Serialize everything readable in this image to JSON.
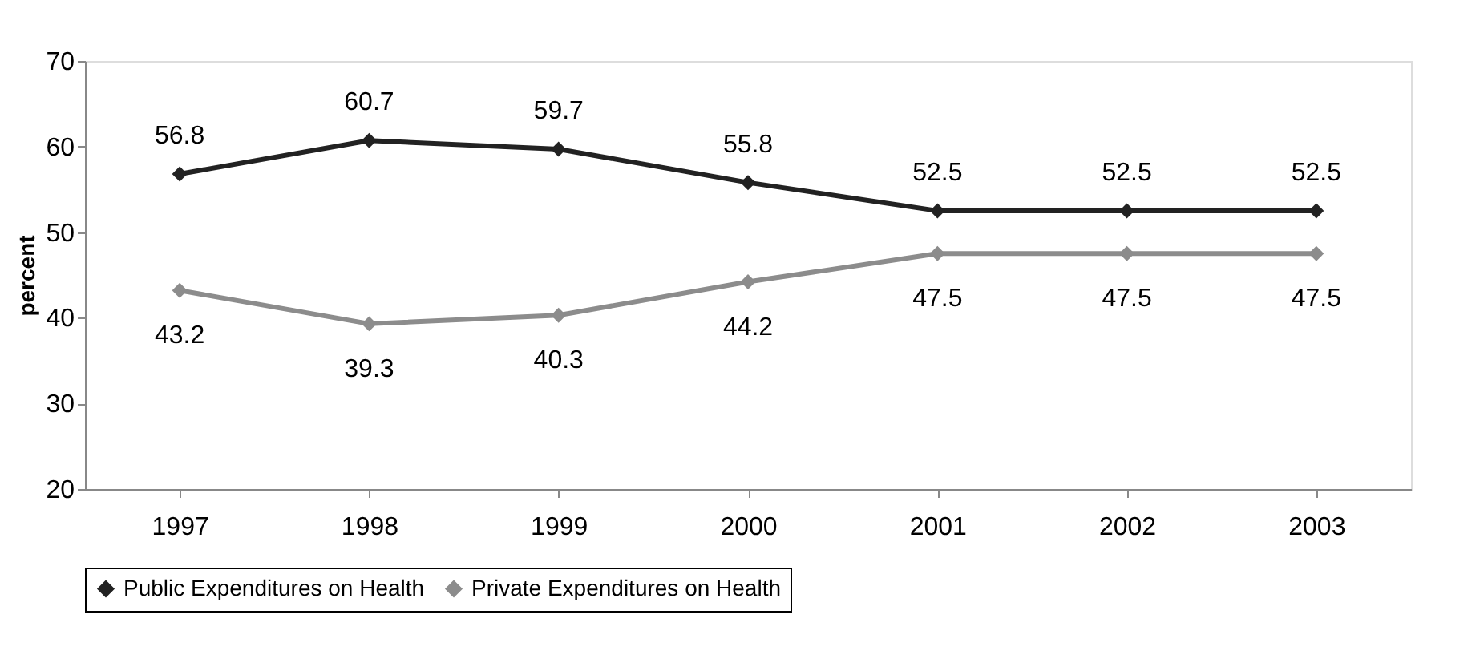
{
  "chart_data": {
    "type": "line",
    "ylabel": "percent",
    "categories": [
      "1997",
      "1998",
      "1999",
      "2000",
      "2001",
      "2002",
      "2003"
    ],
    "series": [
      {
        "name": "Public Expenditures on Health",
        "color": "#222222",
        "values": [
          56.8,
          60.7,
          59.7,
          55.8,
          52.5,
          52.5,
          52.5
        ]
      },
      {
        "name": "Private Expenditures on Health",
        "color": "#8c8c8c",
        "values": [
          43.2,
          39.3,
          40.3,
          44.2,
          47.5,
          47.5,
          47.5
        ]
      }
    ],
    "ylim": [
      20,
      70
    ],
    "yticks": [
      20,
      30,
      40,
      50,
      60,
      70
    ],
    "grid": false,
    "legend": "bottom",
    "marker": "diamond",
    "line_style": "solid",
    "data_labels": true
  }
}
